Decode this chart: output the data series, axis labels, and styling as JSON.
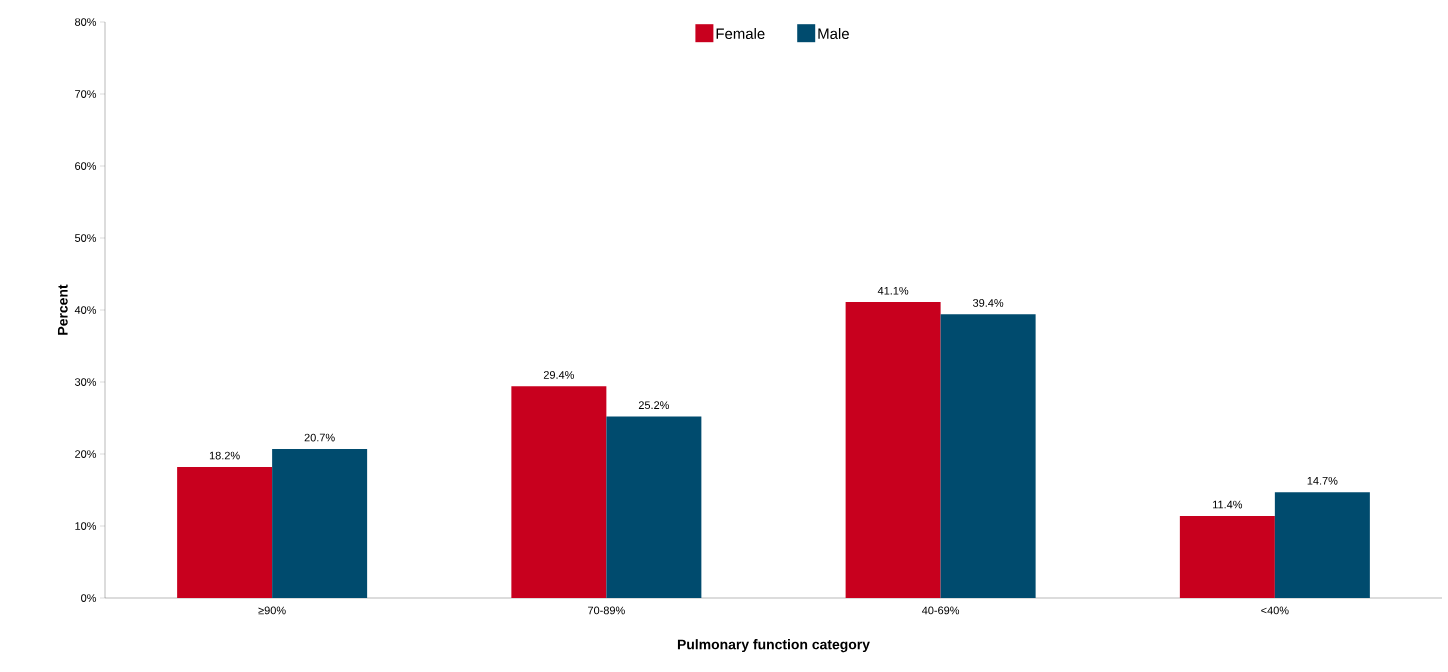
{
  "chart_data": {
    "type": "bar",
    "xlabel": "Pulmonary function category",
    "ylabel": "Percent",
    "categories": [
      "≥90%",
      "70-89%",
      "40-69%",
      "<40%"
    ],
    "series": [
      {
        "name": "Female",
        "color": "#c8001e",
        "values": [
          18.2,
          29.4,
          41.1,
          11.4
        ],
        "value_labels": [
          "18.2%",
          "29.4%",
          "41.1%",
          "11.4%"
        ]
      },
      {
        "name": "Male",
        "color": "#004b6e",
        "values": [
          20.7,
          25.2,
          39.4,
          14.7
        ],
        "value_labels": [
          "20.7%",
          "25.2%",
          "39.4%",
          "14.7%"
        ]
      }
    ],
    "ylim": [
      0,
      80
    ],
    "yticks": [
      {
        "value": 0,
        "label": "0%"
      },
      {
        "value": 10,
        "label": "10%"
      },
      {
        "value": 20,
        "label": "20%"
      },
      {
        "value": 30,
        "label": "30%"
      },
      {
        "value": 40,
        "label": "40%"
      },
      {
        "value": 50,
        "label": "50%"
      },
      {
        "value": 60,
        "label": "60%"
      },
      {
        "value": 70,
        "label": "70%"
      },
      {
        "value": 80,
        "label": "80%"
      }
    ],
    "grid": false,
    "legend": "top"
  }
}
